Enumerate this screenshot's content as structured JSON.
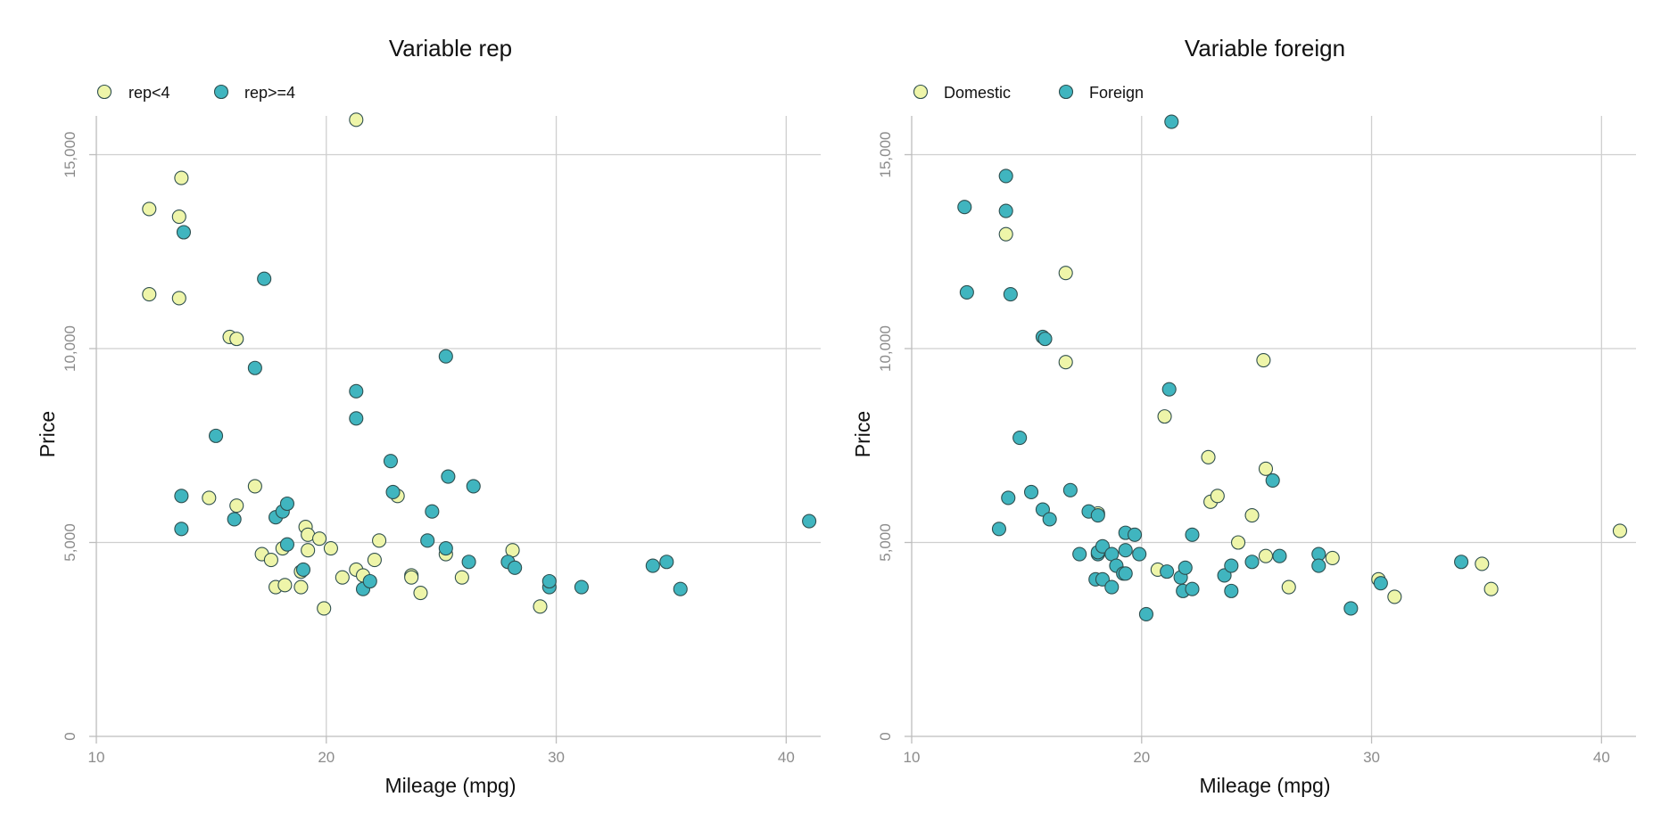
{
  "colors": {
    "rep_lt_4": "#eef5a9",
    "rep_ge_4": "#40b5bf",
    "domestic": "#eef5a9",
    "foreign": "#40b5bf",
    "grid": "#cfcfcf",
    "tick_text": "#8c8c8c",
    "point_edge": "#2f4f4f"
  },
  "chart_data": [
    {
      "type": "scatter",
      "title": "Variable rep",
      "xlabel": "Mileage (mpg)",
      "ylabel": "Price",
      "xlim": [
        10,
        41.5
      ],
      "ylim": [
        0,
        16000
      ],
      "xticks": [
        10,
        20,
        30,
        40
      ],
      "xtick_labels": [
        "10",
        "20",
        "30",
        "40"
      ],
      "yticks": [
        0,
        5000,
        10000,
        15000
      ],
      "ytick_labels": [
        "0",
        "5,000",
        "10,000",
        "15,000"
      ],
      "grid": true,
      "legend_position": "top-left",
      "series": [
        {
          "name": "rep<4",
          "color_key": "rep_lt_4",
          "points": [
            [
              12.3,
              13600
            ],
            [
              12.3,
              11400
            ],
            [
              13.6,
              13400
            ],
            [
              13.7,
              14400
            ],
            [
              13.6,
              11300
            ],
            [
              15.8,
              10300
            ],
            [
              16.1,
              10250
            ],
            [
              14.9,
              6150
            ],
            [
              16.1,
              5950
            ],
            [
              16.9,
              6450
            ],
            [
              17.2,
              4700
            ],
            [
              17.6,
              4550
            ],
            [
              17.8,
              3850
            ],
            [
              18.1,
              4850
            ],
            [
              18.2,
              3900
            ],
            [
              18.9,
              4250
            ],
            [
              18.9,
              3850
            ],
            [
              19.1,
              5400
            ],
            [
              19.2,
              5200
            ],
            [
              19.2,
              4800
            ],
            [
              19.7,
              5100
            ],
            [
              19.9,
              3300
            ],
            [
              20.2,
              4850
            ],
            [
              20.7,
              4100
            ],
            [
              21.3,
              15900
            ],
            [
              21.3,
              4300
            ],
            [
              21.6,
              4150
            ],
            [
              22.1,
              4550
            ],
            [
              22.3,
              5050
            ],
            [
              23.1,
              6200
            ],
            [
              23.7,
              4150
            ],
            [
              23.7,
              4100
            ],
            [
              24.1,
              3700
            ],
            [
              25.2,
              4700
            ],
            [
              25.9,
              4100
            ],
            [
              28.1,
              4800
            ],
            [
              29.3,
              3350
            ]
          ]
        },
        {
          "name": "rep>=4",
          "color_key": "rep_ge_4",
          "points": [
            [
              13.8,
              13000
            ],
            [
              13.7,
              6200
            ],
            [
              13.7,
              5350
            ],
            [
              15.2,
              7750
            ],
            [
              16.0,
              5600
            ],
            [
              16.9,
              9500
            ],
            [
              17.3,
              11800
            ],
            [
              17.8,
              5650
            ],
            [
              18.1,
              5800
            ],
            [
              18.3,
              6000
            ],
            [
              18.3,
              4950
            ],
            [
              19.0,
              4300
            ],
            [
              21.3,
              8900
            ],
            [
              21.3,
              8200
            ],
            [
              21.6,
              3800
            ],
            [
              21.9,
              4000
            ],
            [
              22.8,
              7100
            ],
            [
              22.9,
              6300
            ],
            [
              24.4,
              5050
            ],
            [
              24.6,
              5800
            ],
            [
              25.2,
              9800
            ],
            [
              25.3,
              6700
            ],
            [
              25.2,
              4850
            ],
            [
              26.2,
              4500
            ],
            [
              26.4,
              6450
            ],
            [
              27.9,
              4500
            ],
            [
              28.2,
              4350
            ],
            [
              29.7,
              3850
            ],
            [
              29.7,
              4000
            ],
            [
              31.1,
              3850
            ],
            [
              34.2,
              4400
            ],
            [
              34.8,
              4500
            ],
            [
              35.4,
              3800
            ],
            [
              41.0,
              5550
            ]
          ]
        }
      ]
    },
    {
      "type": "scatter",
      "title": "Variable foreign",
      "xlabel": "Mileage (mpg)",
      "ylabel": "Price",
      "xlim": [
        10,
        41.5
      ],
      "ylim": [
        0,
        16000
      ],
      "xticks": [
        10,
        20,
        30,
        40
      ],
      "xtick_labels": [
        "10",
        "20",
        "30",
        "40"
      ],
      "yticks": [
        0,
        5000,
        10000,
        15000
      ],
      "ytick_labels": [
        "0",
        "5,000",
        "10,000",
        "15,000"
      ],
      "grid": true,
      "legend_position": "top-left",
      "series": [
        {
          "name": "Domestic",
          "color_key": "domestic",
          "points": [
            [
              14.1,
              12950
            ],
            [
              16.7,
              11950
            ],
            [
              16.7,
              9650
            ],
            [
              18.1,
              5750
            ],
            [
              20.7,
              4300
            ],
            [
              21.0,
              8250
            ],
            [
              22.9,
              7200
            ],
            [
              23.0,
              6050
            ],
            [
              23.3,
              6200
            ],
            [
              24.2,
              5000
            ],
            [
              24.8,
              5700
            ],
            [
              25.3,
              9700
            ],
            [
              25.4,
              6900
            ],
            [
              25.4,
              4650
            ],
            [
              26.4,
              3850
            ],
            [
              28.3,
              4600
            ],
            [
              30.3,
              4050
            ],
            [
              31.0,
              3600
            ],
            [
              34.8,
              4450
            ],
            [
              35.2,
              3800
            ],
            [
              40.8,
              5300
            ]
          ]
        },
        {
          "name": "Foreign",
          "color_key": "foreign",
          "points": [
            [
              12.3,
              13650
            ],
            [
              12.4,
              11450
            ],
            [
              13.8,
              5350
            ],
            [
              14.1,
              14450
            ],
            [
              14.1,
              13550
            ],
            [
              14.2,
              6150
            ],
            [
              14.3,
              11400
            ],
            [
              14.7,
              7700
            ],
            [
              15.2,
              6300
            ],
            [
              15.7,
              10300
            ],
            [
              15.8,
              10250
            ],
            [
              15.7,
              5850
            ],
            [
              16.0,
              5600
            ],
            [
              16.9,
              6350
            ],
            [
              17.3,
              4700
            ],
            [
              17.7,
              5800
            ],
            [
              18.0,
              4050
            ],
            [
              18.1,
              4700
            ],
            [
              18.1,
              4750
            ],
            [
              18.1,
              5700
            ],
            [
              18.3,
              4900
            ],
            [
              18.3,
              4050
            ],
            [
              18.7,
              4700
            ],
            [
              18.7,
              3850
            ],
            [
              18.9,
              4400
            ],
            [
              19.2,
              4200
            ],
            [
              19.3,
              4200
            ],
            [
              19.3,
              5250
            ],
            [
              19.3,
              4800
            ],
            [
              19.7,
              5200
            ],
            [
              19.9,
              4700
            ],
            [
              20.2,
              3150
            ],
            [
              21.1,
              4250
            ],
            [
              21.2,
              8950
            ],
            [
              21.7,
              4100
            ],
            [
              21.8,
              3750
            ],
            [
              21.9,
              4350
            ],
            [
              22.2,
              3800
            ],
            [
              22.2,
              5200
            ],
            [
              23.6,
              4150
            ],
            [
              23.9,
              3750
            ],
            [
              23.9,
              4400
            ],
            [
              24.8,
              4500
            ],
            [
              25.7,
              6600
            ],
            [
              26.0,
              4650
            ],
            [
              27.7,
              4700
            ],
            [
              27.7,
              4400
            ],
            [
              29.1,
              3300
            ],
            [
              30.4,
              3950
            ],
            [
              33.9,
              4500
            ],
            [
              21.3,
              15850
            ]
          ]
        }
      ]
    }
  ]
}
